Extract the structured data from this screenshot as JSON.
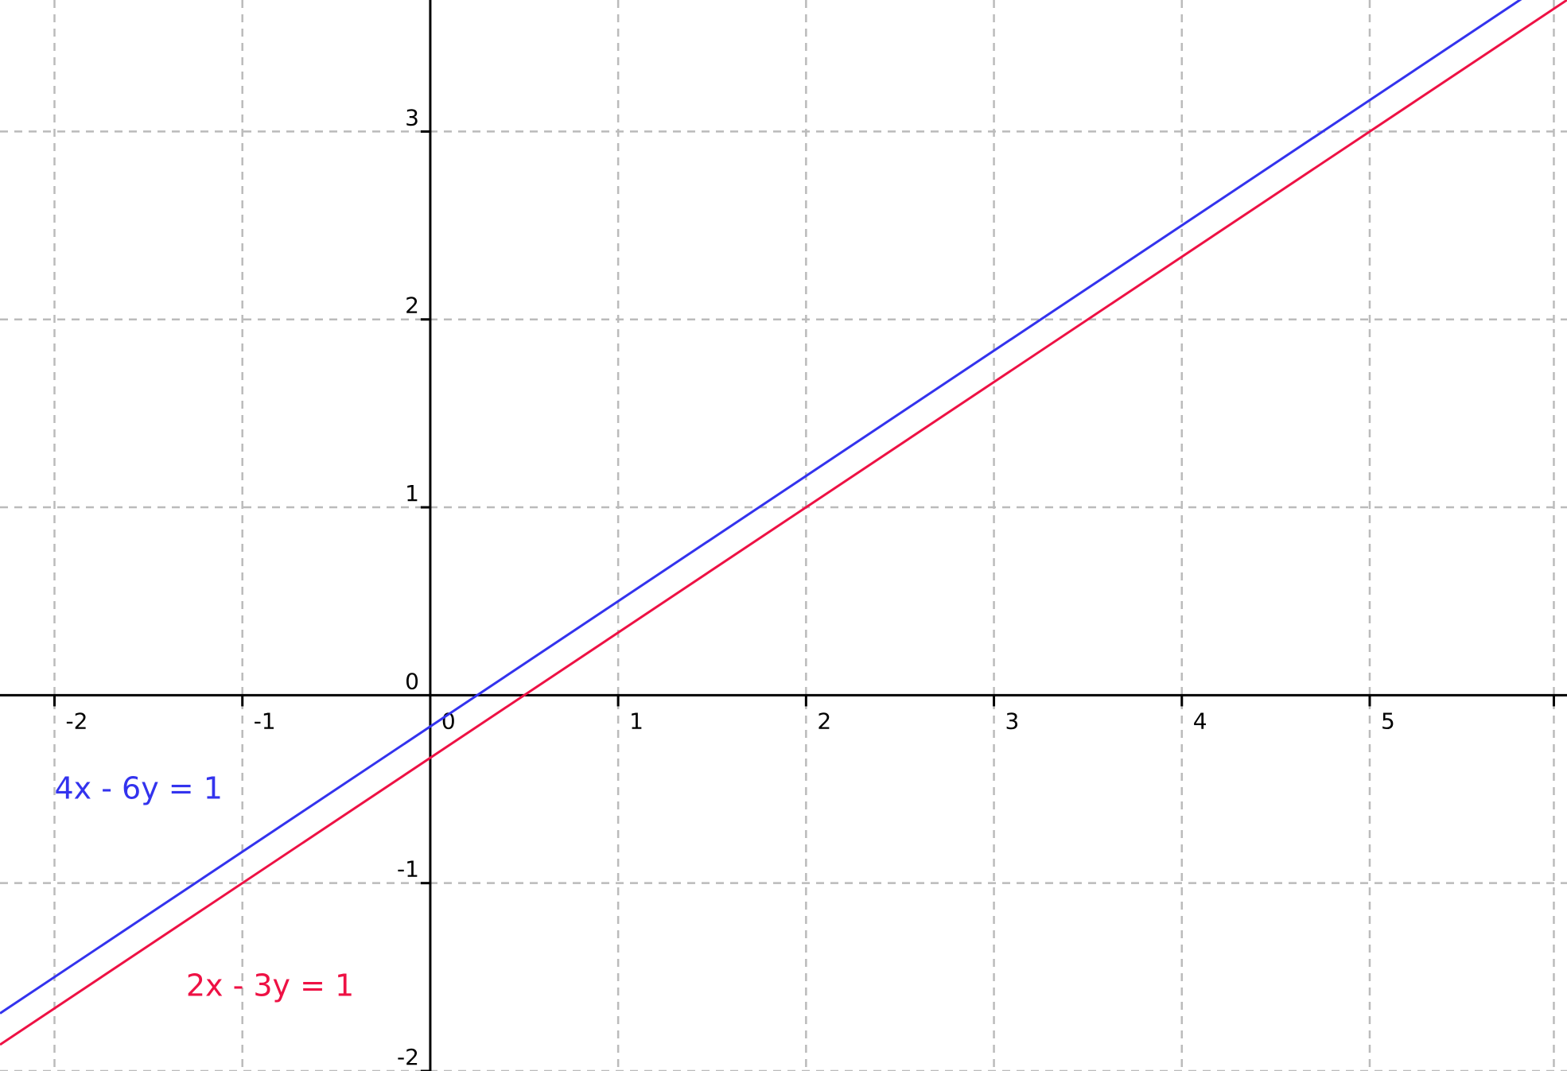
{
  "chart_data": {
    "type": "line",
    "title": "",
    "xlabel": "",
    "ylabel": "",
    "xlim": [
      -2.29,
      6.05
    ],
    "ylim": [
      -2.0,
      3.7
    ],
    "grid": true,
    "x_ticks": [
      -2,
      -1,
      0,
      1,
      2,
      3,
      4,
      5
    ],
    "y_ticks": [
      -2,
      -1,
      0,
      1,
      2,
      3
    ],
    "x_tick_labels": [
      "-2",
      "-1",
      "0",
      "1",
      "2",
      "3",
      "4",
      "5"
    ],
    "y_tick_labels": [
      "-2",
      "-1",
      "0",
      "1",
      "2",
      "3"
    ],
    "series": [
      {
        "name": "4x - 6y = 1",
        "color": "#3333ee",
        "x": [
          -2.29,
          6.05
        ],
        "y": [
          -1.693,
          3.867
        ],
        "label_at": [
          -2.0,
          -0.55
        ]
      },
      {
        "name": "2x - 3y = 1",
        "color": "#ee1144",
        "x": [
          -2.29,
          6.05
        ],
        "y": [
          -1.86,
          3.7
        ],
        "label_at": [
          -1.3,
          -1.6
        ]
      }
    ]
  }
}
